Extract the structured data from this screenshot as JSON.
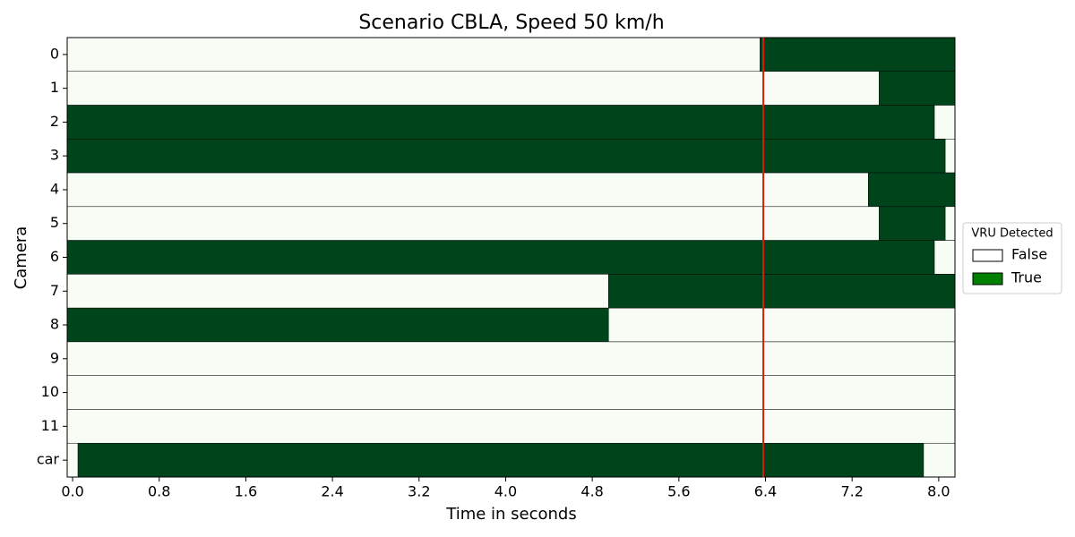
{
  "chart_data": {
    "type": "timeline",
    "title": "Scenario CBLA, Speed 50 km/h",
    "xlabel": "Time in seconds",
    "ylabel": "Camera",
    "xlim": [
      -0.05,
      8.15
    ],
    "xticks": [
      {
        "value": 0,
        "label": "0.0"
      },
      0.8,
      1.6,
      2.4,
      3.2,
      {
        "value": 4,
        "label": "4.0"
      },
      4.8,
      5.6,
      6.4,
      7.2,
      {
        "value": 8,
        "label": "8.0"
      }
    ],
    "state_colors": {
      "false": "#f7fcf5",
      "true": "#00441b"
    },
    "vline": {
      "x": 6.38,
      "color": "#d81e06"
    },
    "legend": {
      "title": "VRU Detected",
      "position": "right",
      "entries": [
        {
          "label": "False",
          "color": "#ffffff"
        },
        {
          "label": "True",
          "color": "#008000"
        }
      ]
    },
    "rows": [
      {
        "name": "0",
        "segments": [
          {
            "start": -0.05,
            "end": 6.35,
            "state": false
          },
          {
            "start": 6.35,
            "end": 8.15,
            "state": true
          }
        ]
      },
      {
        "name": "1",
        "segments": [
          {
            "start": -0.05,
            "end": 7.45,
            "state": false
          },
          {
            "start": 7.45,
            "end": 8.15,
            "state": true
          }
        ]
      },
      {
        "name": "2",
        "segments": [
          {
            "start": -0.05,
            "end": 7.96,
            "state": true
          },
          {
            "start": 7.96,
            "end": 8.15,
            "state": false
          }
        ]
      },
      {
        "name": "3",
        "segments": [
          {
            "start": -0.05,
            "end": 8.06,
            "state": true
          },
          {
            "start": 8.06,
            "end": 8.15,
            "state": false
          }
        ]
      },
      {
        "name": "4",
        "segments": [
          {
            "start": -0.05,
            "end": 7.35,
            "state": false
          },
          {
            "start": 7.35,
            "end": 8.15,
            "state": true
          }
        ]
      },
      {
        "name": "5",
        "segments": [
          {
            "start": -0.05,
            "end": 7.45,
            "state": false
          },
          {
            "start": 7.45,
            "end": 8.06,
            "state": true
          },
          {
            "start": 8.06,
            "end": 8.15,
            "state": false
          }
        ]
      },
      {
        "name": "6",
        "segments": [
          {
            "start": -0.05,
            "end": 7.96,
            "state": true
          },
          {
            "start": 7.96,
            "end": 8.15,
            "state": false
          }
        ]
      },
      {
        "name": "7",
        "segments": [
          {
            "start": -0.05,
            "end": 4.95,
            "state": false
          },
          {
            "start": 4.95,
            "end": 8.15,
            "state": true
          }
        ]
      },
      {
        "name": "8",
        "segments": [
          {
            "start": -0.05,
            "end": 4.95,
            "state": true
          },
          {
            "start": 4.95,
            "end": 8.15,
            "state": false
          }
        ]
      },
      {
        "name": "9",
        "segments": [
          {
            "start": -0.05,
            "end": 8.15,
            "state": false
          }
        ]
      },
      {
        "name": "10",
        "segments": [
          {
            "start": -0.05,
            "end": 8.15,
            "state": false
          }
        ]
      },
      {
        "name": "11",
        "segments": [
          {
            "start": -0.05,
            "end": 8.15,
            "state": false
          }
        ]
      },
      {
        "name": "car",
        "segments": [
          {
            "start": -0.05,
            "end": 0.05,
            "state": false
          },
          {
            "start": 0.05,
            "end": 7.86,
            "state": true
          },
          {
            "start": 7.86,
            "end": 8.15,
            "state": false
          }
        ]
      }
    ]
  }
}
